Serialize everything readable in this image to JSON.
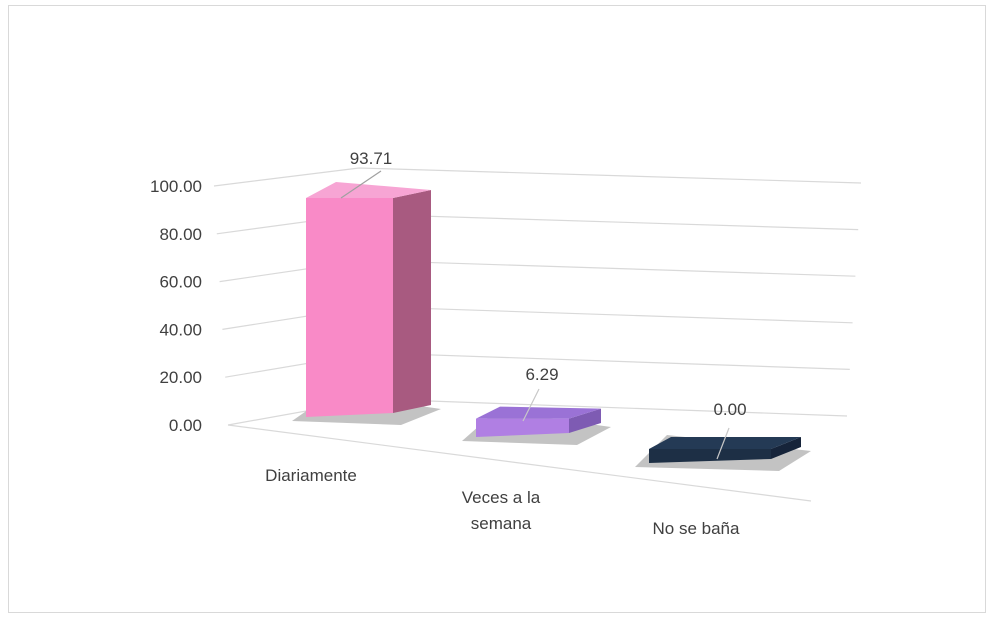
{
  "chart_data": {
    "type": "bar",
    "style": "3d",
    "categories": [
      [
        "Diariamente"
      ],
      [
        "Veces a la",
        "semana"
      ],
      [
        "No se baña"
      ]
    ],
    "values": [
      93.71,
      6.29,
      0.0
    ],
    "value_labels": [
      "93.71",
      "6.29",
      "0.00"
    ],
    "y_ticks": [
      "0.00",
      "20.00",
      "40.00",
      "60.00",
      "80.00",
      "100.00"
    ],
    "ylim": [
      0,
      100
    ],
    "grid": true,
    "legend": "none",
    "title": "",
    "xlabel": "",
    "ylabel": "",
    "colors": {
      "front": [
        "#f98ac7",
        "#b07fe3",
        "#1d2f45"
      ],
      "top": [
        "#f7a5d4",
        "#9a72d6",
        "#243a55"
      ],
      "side": [
        "#a85a80",
        "#7e5bb3",
        "#16243a"
      ],
      "grid": "#d9d9d9",
      "text": "#404040"
    }
  }
}
